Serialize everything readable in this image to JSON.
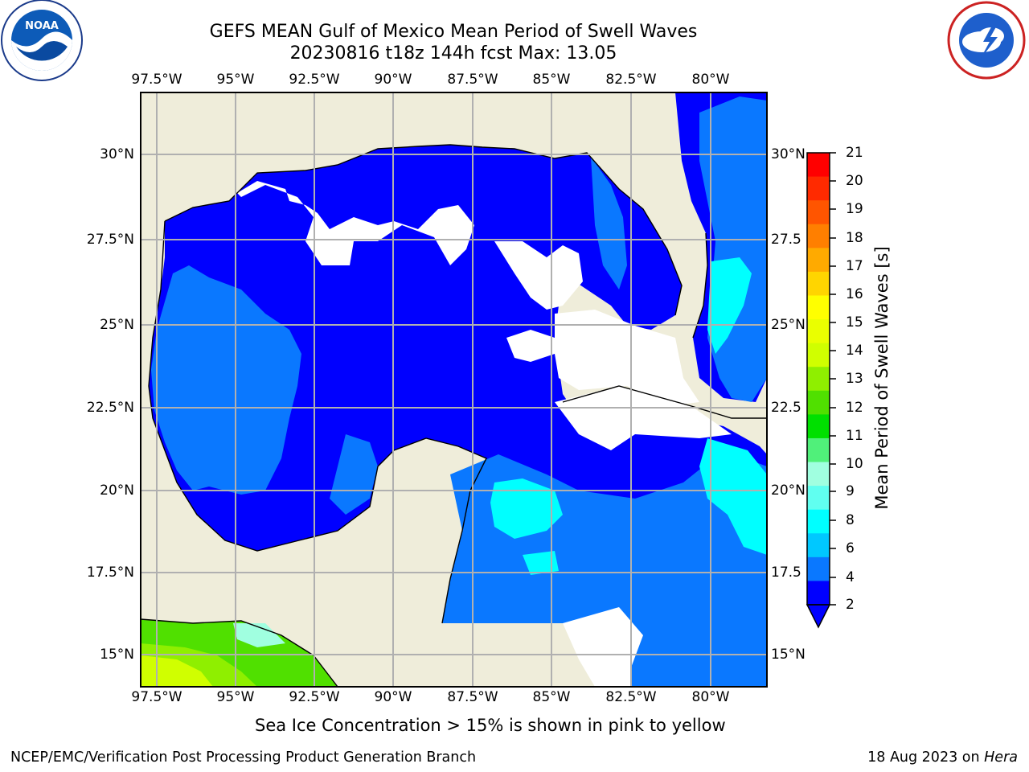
{
  "header": {
    "title_line1": "GEFS MEAN Gulf of Mexico Mean Period of Swell Waves",
    "title_line2": "20230816 t18z 144h fcst   Max: 13.05"
  },
  "logos": {
    "left": "noaa-logo",
    "right": "national-weather-service-logo"
  },
  "map": {
    "lon_labels": [
      "97.5°W",
      "95°W",
      "92.5°W",
      "90°W",
      "87.5°W",
      "85°W",
      "82.5°W",
      "80°W"
    ],
    "lat_labels_left": [
      "30°N",
      "27.5°N",
      "25°N",
      "22.5°N",
      "20°N",
      "17.5°N",
      "15°N"
    ],
    "lat_labels_right": [
      "30°N",
      "27.5",
      "25°N",
      "22.5",
      "20°N",
      "17.5",
      "15°N"
    ],
    "colors": {
      "land": "#efedda",
      "no_data": "#ffffff",
      "grid": "#b0b0b0"
    }
  },
  "colorbar": {
    "title": "Mean Period of Swell Waves [s]",
    "ticks": [
      "21",
      "20",
      "19",
      "18",
      "17",
      "16",
      "15",
      "14",
      "13",
      "12",
      "11",
      "10",
      "9",
      "8",
      "6",
      "4",
      "2"
    ],
    "colors_top_to_bottom": [
      "#ff0000",
      "#ff2a00",
      "#ff5500",
      "#ff7f00",
      "#ffaa00",
      "#ffd500",
      "#ffff00",
      "#eaff00",
      "#d0ff00",
      "#8fef00",
      "#50e000",
      "#00e000",
      "#50f07a",
      "#a0ffe0",
      "#60fff0",
      "#00ffff",
      "#00c8ff",
      "#0a78ff",
      "#0000ff"
    ]
  },
  "footer": {
    "note": "Sea Ice Concentration > 15% is shown in pink to yellow",
    "left": "NCEP/EMC/Verification Post Processing Product Generation Branch",
    "right_date": "18 Aug 2023 on ",
    "right_host": "Hera"
  }
}
